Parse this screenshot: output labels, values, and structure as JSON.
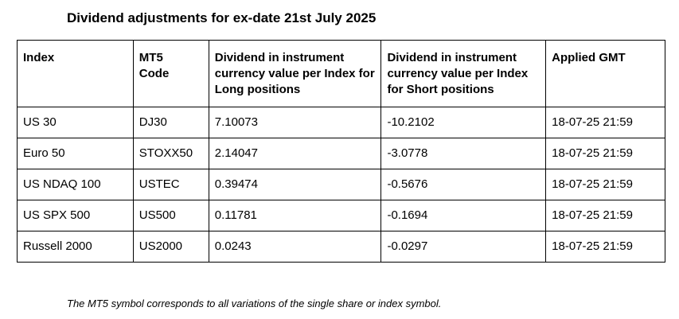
{
  "header": {
    "title": "Dividend adjustments for ex-date 21st July 2025"
  },
  "table": {
    "columns": [
      "Index",
      "MT5 Code",
      "Dividend in instrument currency value per Index for Long positions",
      "Dividend in instrument currency value per Index for Short positions",
      "Applied GMT"
    ],
    "rows": [
      [
        "US 30",
        "DJ30",
        "7.10073",
        "-10.2102",
        "18-07-25 21:59"
      ],
      [
        "Euro 50",
        "STOXX50",
        "2.14047",
        "-3.0778",
        "18-07-25 21:59"
      ],
      [
        "US NDAQ 100",
        "USTEC",
        "0.39474",
        "-0.5676",
        "18-07-25 21:59"
      ],
      [
        "US SPX 500",
        "US500",
        "0.11781",
        "-0.1694",
        "18-07-25 21:59"
      ],
      [
        "Russell 2000",
        "US2000",
        "0.0243",
        "-0.0297",
        "18-07-25 21:59"
      ]
    ]
  },
  "footnote": "The MT5 symbol corresponds to all variations of the single share or index symbol."
}
